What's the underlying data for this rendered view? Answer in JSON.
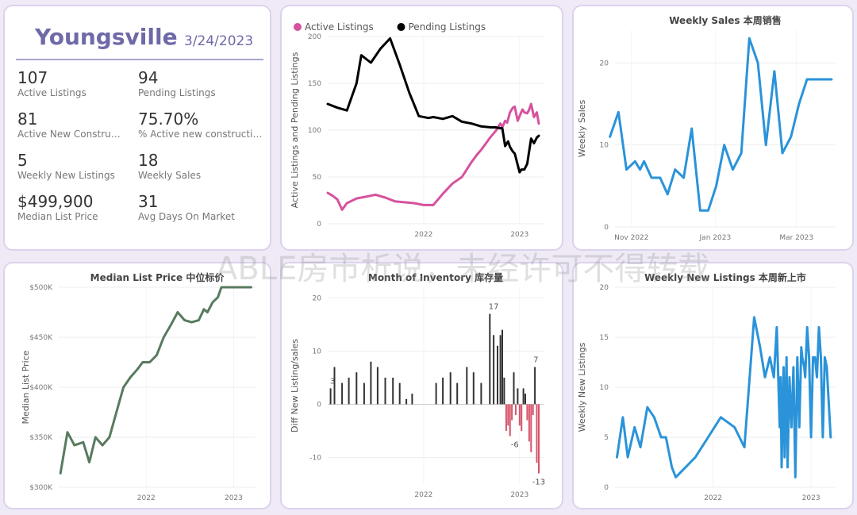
{
  "header": {
    "city": "Youngsville",
    "date": "3/24/2023"
  },
  "kpis": [
    {
      "value": "107",
      "label": "Active Listings"
    },
    {
      "value": "94",
      "label": "Pending Listings"
    },
    {
      "value": "81",
      "label": "Active New Constructions"
    },
    {
      "value": "75.70%",
      "label": "% Active new constructions"
    },
    {
      "value": "5",
      "label": "Weekly New Listings"
    },
    {
      "value": "18",
      "label": "Weekly Sales"
    },
    {
      "value": "$499,900",
      "label": "Median List Price"
    },
    {
      "value": "31",
      "label": "Avg Days On Market"
    }
  ],
  "watermark": "ABLE房市析说，未经许可不得转载",
  "colors": {
    "active": "#d6529e",
    "pending": "#000000",
    "blue": "#2a93d9",
    "green": "#587a5e",
    "neg": "#d5546a",
    "bar": "#333333"
  },
  "chart_data": [
    {
      "id": "listings",
      "type": "line",
      "title": "",
      "xlabel": "",
      "ylabel": "Active Listings and Pending Listings",
      "ylim": [
        0,
        200
      ],
      "yticks": [
        0,
        50,
        100,
        150,
        200
      ],
      "xticks": [
        {
          "x": 2022.0,
          "label": "2022"
        },
        {
          "x": 2023.0,
          "label": "2023"
        }
      ],
      "xlim": [
        2021.0,
        2023.25
      ],
      "legend": "top-left",
      "series": [
        {
          "name": "Active Listings",
          "color": "#d6529e",
          "x": [
            2021.0,
            2021.05,
            2021.1,
            2021.15,
            2021.2,
            2021.3,
            2021.4,
            2021.5,
            2021.6,
            2021.7,
            2021.8,
            2021.9,
            2022.0,
            2022.1,
            2022.2,
            2022.3,
            2022.4,
            2022.5,
            2022.55,
            2022.6,
            2022.65,
            2022.7,
            2022.75,
            2022.8,
            2022.82,
            2022.85,
            2022.87,
            2022.9,
            2022.93,
            2022.95,
            2022.98,
            2023.0,
            2023.03,
            2023.05,
            2023.08,
            2023.1,
            2023.12,
            2023.15,
            2023.18,
            2023.2
          ],
          "y": [
            33,
            30,
            26,
            15,
            22,
            27,
            29,
            31,
            28,
            24,
            23,
            22,
            20,
            20,
            32,
            43,
            50,
            66,
            73,
            79,
            86,
            93,
            99,
            107,
            103,
            110,
            108,
            119,
            124,
            125,
            110,
            115,
            122,
            119,
            118,
            122,
            128,
            114,
            119,
            107
          ]
        },
        {
          "name": "Pending Listings",
          "color": "#000000",
          "x": [
            2021.0,
            2021.1,
            2021.2,
            2021.3,
            2021.35,
            2021.45,
            2021.55,
            2021.65,
            2021.75,
            2021.85,
            2021.95,
            2022.05,
            2022.1,
            2022.2,
            2022.3,
            2022.4,
            2022.5,
            2022.6,
            2022.7,
            2022.75,
            2022.8,
            2022.82,
            2022.85,
            2022.88,
            2022.9,
            2022.93,
            2022.95,
            2023.0,
            2023.02,
            2023.05,
            2023.08,
            2023.12,
            2023.15,
            2023.18,
            2023.2
          ],
          "y": [
            128,
            124,
            121,
            150,
            180,
            172,
            187,
            198,
            170,
            140,
            115,
            113,
            114,
            112,
            115,
            109,
            107,
            104,
            103,
            103,
            102,
            102,
            83,
            88,
            82,
            77,
            75,
            55,
            58,
            58,
            64,
            91,
            86,
            92,
            94
          ]
        }
      ]
    },
    {
      "id": "weekly_sales",
      "type": "line",
      "title": "Weekly Sales 本周销售",
      "xlabel": "",
      "ylabel": "Weekly Sales",
      "ylim": [
        0,
        24
      ],
      "yticks": [
        0,
        10,
        20
      ],
      "xlim": [
        2022.8,
        2023.24
      ],
      "xticks": [
        {
          "x": 2022.833,
          "label": "Nov 2022"
        },
        {
          "x": 2023.0,
          "label": "Jan 2023"
        },
        {
          "x": 2023.162,
          "label": "Mar 2023"
        }
      ],
      "series": [
        {
          "name": "",
          "color": "#2a93d9",
          "x": [
            2022.79,
            2022.807,
            2022.823,
            2022.84,
            2022.85,
            2022.858,
            2022.873,
            2022.89,
            2022.905,
            2022.92,
            2022.937,
            2022.953,
            2022.97,
            2022.986,
            2023.002,
            2023.018,
            2023.035,
            2023.052,
            2023.068,
            2023.085,
            2023.101,
            2023.118,
            2023.134,
            2023.151,
            2023.167,
            2023.183,
            2023.2,
            2023.216,
            2023.232
          ],
          "y": [
            11,
            14,
            7,
            8,
            7,
            8,
            6,
            6,
            4,
            7,
            6,
            12,
            2,
            2,
            5,
            10,
            7,
            9,
            23,
            20,
            10,
            19,
            9,
            11,
            15,
            18,
            18,
            18,
            18
          ]
        }
      ]
    },
    {
      "id": "median_price",
      "type": "line",
      "title": "Median List Price  中位标价",
      "xlabel": "",
      "ylabel": "Median List Price",
      "ylim": [
        300000,
        500000
      ],
      "yticks": [
        {
          "v": 300000,
          "label": "$300K"
        },
        {
          "v": 350000,
          "label": "$350K"
        },
        {
          "v": 400000,
          "label": "$400K"
        },
        {
          "v": 450000,
          "label": "$450K"
        },
        {
          "v": 500000,
          "label": "$500K"
        }
      ],
      "xlim": [
        2021.0,
        2023.25
      ],
      "xticks": [
        {
          "x": 2022.0,
          "label": "2022"
        },
        {
          "x": 2023.0,
          "label": "2023"
        }
      ],
      "series": [
        {
          "name": "",
          "color": "#587a5e",
          "x": [
            2021.02,
            2021.1,
            2021.18,
            2021.28,
            2021.35,
            2021.42,
            2021.5,
            2021.58,
            2021.66,
            2021.74,
            2021.82,
            2021.9,
            2021.96,
            2022.04,
            2022.12,
            2022.2,
            2022.28,
            2022.36,
            2022.44,
            2022.52,
            2022.6,
            2022.66,
            2022.7,
            2022.76,
            2022.82,
            2022.86,
            2022.9,
            2022.95,
            2023.0,
            2023.04,
            2023.08,
            2023.12,
            2023.16,
            2023.2
          ],
          "y": [
            314000,
            355000,
            342000,
            345000,
            325000,
            350000,
            342000,
            350000,
            375000,
            400000,
            410000,
            418000,
            425000,
            425000,
            432000,
            450000,
            462000,
            475000,
            467000,
            465000,
            467000,
            478000,
            475000,
            485000,
            490000,
            500000,
            500000,
            500000,
            500000,
            500000,
            500000,
            500000,
            500000,
            500000
          ]
        }
      ]
    },
    {
      "id": "months_inventory",
      "type": "bar",
      "title": "Month of Inventory 库存量",
      "xlabel": "",
      "ylabel": "Diff New Listing/sales",
      "ylim": [
        -15,
        22
      ],
      "yticks": [
        -10,
        0,
        10,
        20
      ],
      "xlim": [
        2021.0,
        2023.25
      ],
      "xticks": [
        {
          "x": 2022.0,
          "label": "2022"
        },
        {
          "x": 2023.0,
          "label": "2023"
        }
      ],
      "data_labels": [
        {
          "x": 2021.05,
          "v": 3,
          "label": "3"
        },
        {
          "x": 2022.73,
          "v": 17,
          "label": "17"
        },
        {
          "x": 2022.95,
          "v": -6,
          "label": "-6"
        },
        {
          "x": 2023.17,
          "v": 7,
          "label": "7"
        },
        {
          "x": 2023.2,
          "v": -13,
          "label": "-13"
        }
      ],
      "x": [
        2021.03,
        2021.07,
        2021.15,
        2021.22,
        2021.3,
        2021.38,
        2021.45,
        2021.52,
        2021.6,
        2021.68,
        2021.75,
        2021.82,
        2021.88,
        2022.13,
        2022.2,
        2022.28,
        2022.35,
        2022.45,
        2022.52,
        2022.6,
        2022.69,
        2022.73,
        2022.77,
        2022.8,
        2022.82,
        2022.84,
        2022.86,
        2022.88,
        2022.9,
        2022.92,
        2022.94,
        2022.96,
        2022.98,
        2023.0,
        2023.02,
        2023.04,
        2023.06,
        2023.08,
        2023.1,
        2023.12,
        2023.14,
        2023.16,
        2023.18,
        2023.2
      ],
      "values": [
        3,
        7,
        4,
        5,
        6,
        4,
        8,
        7,
        5,
        5,
        4,
        1,
        2,
        4,
        5,
        6,
        4,
        7,
        6,
        4,
        17,
        13,
        11,
        13,
        14,
        5,
        -5,
        -4,
        -6,
        -3,
        6,
        -2,
        3,
        -4,
        -5,
        3,
        2,
        -3,
        -7,
        -9,
        -2,
        7,
        -11,
        -13
      ]
    },
    {
      "id": "weekly_new_listings",
      "type": "line",
      "title": "Weekly New Listings  本周新上市",
      "xlabel": "",
      "ylabel": "Weekly New Listings",
      "ylim": [
        0,
        20
      ],
      "yticks": [
        0,
        5,
        10,
        15,
        20
      ],
      "xlim": [
        2021.0,
        2023.25
      ],
      "xticks": [
        {
          "x": 2022.0,
          "label": "2022"
        },
        {
          "x": 2023.0,
          "label": "2023"
        }
      ],
      "series": [
        {
          "name": "",
          "color": "#2a93d9",
          "x": [
            2021.02,
            2021.08,
            2021.13,
            2021.2,
            2021.26,
            2021.33,
            2021.4,
            2021.47,
            2021.52,
            2021.58,
            2021.62,
            2021.72,
            2021.82,
            2021.95,
            2022.08,
            2022.22,
            2022.32,
            2022.42,
            2022.48,
            2022.53,
            2022.58,
            2022.62,
            2022.65,
            2022.68,
            2022.69,
            2022.7,
            2022.72,
            2022.73,
            2022.75,
            2022.76,
            2022.78,
            2022.8,
            2022.82,
            2022.84,
            2022.86,
            2022.88,
            2022.9,
            2022.91,
            2022.93,
            2022.94,
            2022.96,
            2022.98,
            2023.0,
            2023.02,
            2023.04,
            2023.06,
            2023.08,
            2023.1,
            2023.12,
            2023.14,
            2023.16,
            2023.2
          ],
          "y": [
            3,
            7,
            3,
            6,
            4,
            8,
            7,
            5,
            5,
            2,
            1,
            2,
            3,
            5,
            7,
            6,
            4,
            17,
            14,
            11,
            13,
            11,
            16,
            6,
            11,
            2,
            12,
            3,
            13,
            2,
            11,
            6,
            12,
            1,
            13,
            6,
            14,
            13,
            12,
            11,
            16,
            13,
            5,
            13,
            13,
            11,
            16,
            13,
            5,
            13,
            12,
            5
          ]
        }
      ]
    }
  ]
}
